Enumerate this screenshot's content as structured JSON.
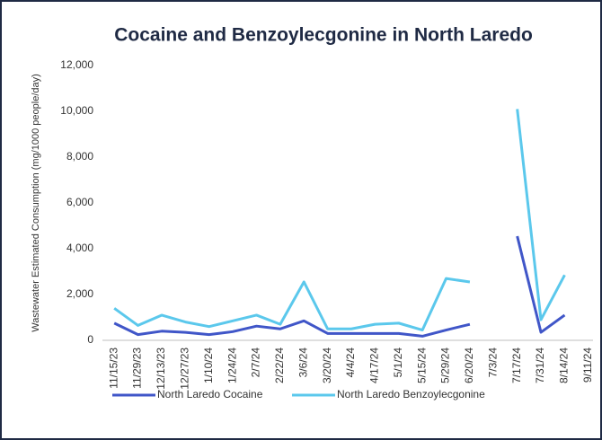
{
  "chart_data": {
    "type": "line",
    "title": "Cocaine and Benzoylecgonine in North Laredo",
    "y_label": "Wastewater Estimated Consumption (mg/1000 people/day)",
    "categories": [
      "11/15/23",
      "11/29/23",
      "12/13/23",
      "12/27/23",
      "1/10/24",
      "1/24/24",
      "2/7/24",
      "2/22/24",
      "3/6/24",
      "3/20/24",
      "4/4/24",
      "4/17/24",
      "5/1/24",
      "5/15/24",
      "5/29/24",
      "6/20/24",
      "7/3/24",
      "7/17/24",
      "7/31/24",
      "8/14/24",
      "9/11/24"
    ],
    "series": [
      {
        "name": "North Laredo Cocaine",
        "color": "#4056c8",
        "values": [
          750,
          250,
          400,
          350,
          250,
          380,
          620,
          500,
          850,
          300,
          300,
          300,
          300,
          180,
          450,
          700,
          null,
          4550,
          350,
          1100,
          null
        ]
      },
      {
        "name": "North Laredo Benzoylecgonine",
        "color": "#5bc8ec",
        "values": [
          1400,
          650,
          1100,
          800,
          600,
          850,
          1100,
          700,
          2550,
          500,
          500,
          700,
          750,
          450,
          2700,
          2550,
          null,
          10100,
          900,
          2850,
          null
        ]
      }
    ],
    "ylim": [
      0,
      12000
    ],
    "yticks": [
      0,
      {
        "value": 2000,
        "label": "2,000"
      },
      {
        "value": 4000,
        "label": "4,000"
      },
      {
        "value": 6000,
        "label": "6,000"
      },
      {
        "value": 8000,
        "label": "8,000"
      },
      {
        "value": 10000,
        "label": "10,000"
      },
      {
        "value": 12000,
        "label": "12,000"
      }
    ],
    "grid": false,
    "legend": "bottom"
  }
}
